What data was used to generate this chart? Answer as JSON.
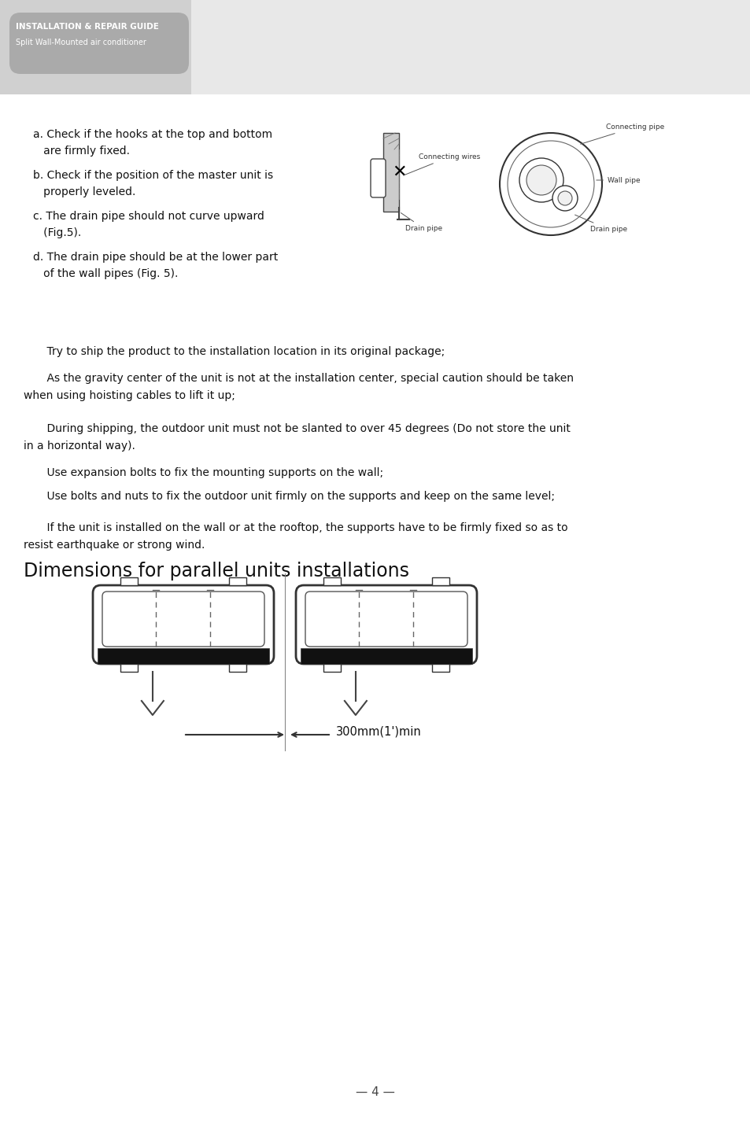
{
  "page_bg": "#e0e0e0",
  "left_col_bg": "#d0d0d0",
  "right_col_bg": "#e8e8e8",
  "body_bg": "#ffffff",
  "header_banner_bg": "#aaaaaa",
  "header_title": "INSTALLATION & REPAIR GUIDE",
  "header_subtitle": "Split Wall-Mounted air conditioner",
  "text_color": "#111111",
  "bullet_a_1": "a. Check if the hooks at the top and bottom",
  "bullet_a_2": "   are firmly fixed.",
  "bullet_b_1": "b. Check if the position of the master unit is",
  "bullet_b_2": "   properly leveled.",
  "bullet_c_1": "c. The drain pipe should not curve upward",
  "bullet_c_2": "   (Fig.5).",
  "bullet_d_1": "d. The drain pipe should be at the lower part",
  "bullet_d_2": "   of the wall pipes (Fig. 5).",
  "para1": "    Try to ship the product to the installation location in its original package;",
  "para2_1": "    As the gravity center of the unit is not at the installation center, special caution should be taken",
  "para2_2": "when using hoisting cables to lift it up;",
  "para3_1": "    During shipping, the outdoor unit must not be slanted to over 45 degrees (Do not store the unit",
  "para3_2": "in a horizontal way).",
  "para4": "    Use expansion bolts to fix the mounting supports on the wall;",
  "para5": "    Use bolts and nuts to fix the outdoor unit firmly on the supports and keep on the same level;",
  "para6_1": "    If the unit is installed on the wall or at the rooftop, the supports have to be firmly fixed so as to",
  "para6_2": "resist earthquake or strong wind.",
  "section_title": "Dimensions for parallel units installations",
  "dim_label": "300mm(1')min",
  "page_number": "4"
}
